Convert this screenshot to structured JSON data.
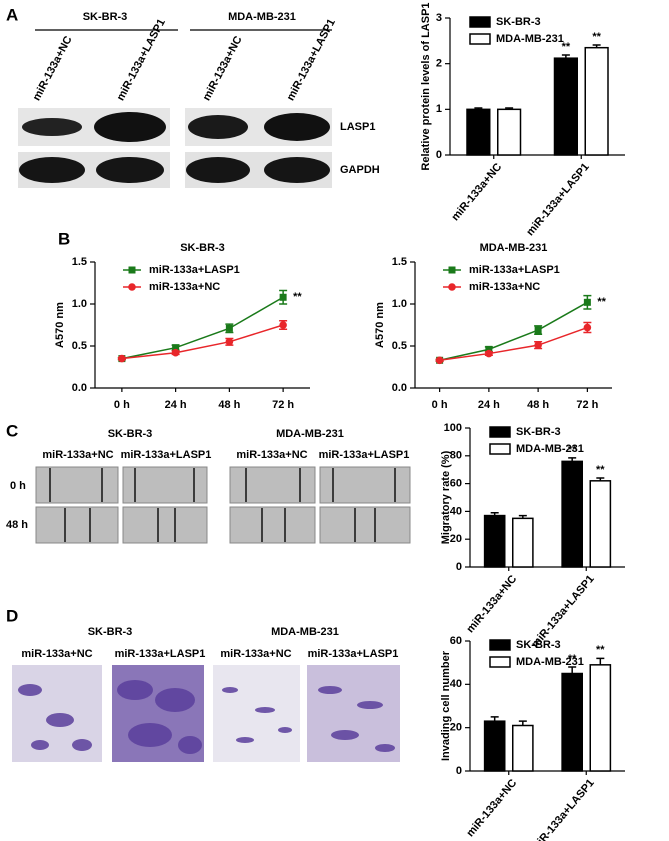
{
  "chart_data": [
    {
      "type": "bar",
      "ylabel": "Relative protein levels of LASP1",
      "categories": [
        "miR-133a+NC",
        "miR-133a+LASP1"
      ],
      "series": [
        {
          "name": "SK-BR-3",
          "color": "#000000",
          "values": [
            1.0,
            2.12
          ],
          "errors": [
            0.03,
            0.07
          ],
          "significance": [
            null,
            "**"
          ]
        },
        {
          "name": "MDA-MB-231",
          "color": "#ffffff",
          "values": [
            1.0,
            2.35
          ],
          "errors": [
            0.03,
            0.06
          ],
          "significance": [
            null,
            "**"
          ]
        }
      ],
      "ylim": [
        0,
        3
      ],
      "yticks": [
        0,
        1,
        2,
        3
      ]
    },
    {
      "type": "line",
      "title": "SK-BR-3",
      "ylabel": "A570 nm",
      "categories": [
        "0 h",
        "24 h",
        "48 h",
        "72 h"
      ],
      "series": [
        {
          "name": "miR-133a+LASP1",
          "color": "#1a7a1a",
          "marker": "square",
          "values": [
            0.35,
            0.48,
            0.71,
            1.08
          ],
          "errors": [
            0.01,
            0.03,
            0.05,
            0.08
          ]
        },
        {
          "name": "miR-133a+NC",
          "color": "#e8262a",
          "marker": "circle",
          "values": [
            0.35,
            0.42,
            0.55,
            0.75
          ],
          "errors": [
            0.01,
            0.02,
            0.04,
            0.05
          ]
        }
      ],
      "annotation": "**",
      "ylim": [
        0,
        1.5
      ],
      "yticks": [
        {
          "value": 0,
          "label": "0.0"
        },
        {
          "value": 0.5,
          "label": "0.5"
        },
        {
          "value": 1,
          "label": "1.0"
        },
        {
          "value": 1.5,
          "label": "1.5"
        }
      ]
    },
    {
      "type": "line",
      "title": "MDA-MB-231",
      "ylabel": "A570 nm",
      "categories": [
        "0 h",
        "24 h",
        "48 h",
        "72 h"
      ],
      "series": [
        {
          "name": "miR-133a+LASP1",
          "color": "#1a7a1a",
          "marker": "square",
          "values": [
            0.33,
            0.46,
            0.69,
            1.02
          ],
          "errors": [
            0.01,
            0.03,
            0.05,
            0.08
          ]
        },
        {
          "name": "miR-133a+NC",
          "color": "#e8262a",
          "marker": "circle",
          "values": [
            0.33,
            0.41,
            0.51,
            0.72
          ],
          "errors": [
            0.01,
            0.02,
            0.04,
            0.06
          ]
        }
      ],
      "annotation": "**",
      "ylim": [
        0,
        1.5
      ],
      "yticks": [
        {
          "value": 0,
          "label": "0.0"
        },
        {
          "value": 0.5,
          "label": "0.5"
        },
        {
          "value": 1,
          "label": "1.0"
        },
        {
          "value": 1.5,
          "label": "1.5"
        }
      ]
    },
    {
      "type": "bar",
      "ylabel": "Migratory rate (%)",
      "categories": [
        "miR-133a+NC",
        "miR-133a+LASP1"
      ],
      "series": [
        {
          "name": "SK-BR-3",
          "color": "#000000",
          "values": [
            37,
            76
          ],
          "errors": [
            2,
            2.5
          ],
          "significance": [
            null,
            "**"
          ]
        },
        {
          "name": "MDA-MB-231",
          "color": "#ffffff",
          "values": [
            35,
            62
          ],
          "errors": [
            2,
            2
          ],
          "significance": [
            null,
            "**"
          ]
        }
      ],
      "ylim": [
        0,
        100
      ],
      "yticks": [
        0,
        20,
        40,
        60,
        80,
        100
      ]
    },
    {
      "type": "bar",
      "ylabel": "Invading cell number",
      "categories": [
        "miR-133a+NC",
        "miR-133a+LASP1"
      ],
      "series": [
        {
          "name": "SK-BR-3",
          "color": "#000000",
          "values": [
            23,
            45
          ],
          "errors": [
            2,
            3
          ],
          "significance": [
            null,
            "**"
          ]
        },
        {
          "name": "MDA-MB-231",
          "color": "#ffffff",
          "values": [
            21,
            49
          ],
          "errors": [
            2,
            3
          ],
          "significance": [
            null,
            "**"
          ]
        }
      ],
      "ylim": [
        0,
        60
      ],
      "yticks": [
        0,
        20,
        40,
        60
      ]
    }
  ],
  "figure": {
    "panels": [
      "A",
      "B",
      "C",
      "D"
    ],
    "blot": {
      "groups": [
        "SK-BR-3",
        "MDA-MB-231"
      ],
      "lanes": [
        "miR-133a+NC",
        "miR-133a+LASP1",
        "miR-133a+NC",
        "miR-133a+LASP1"
      ],
      "bands": [
        "LASP1",
        "GAPDH"
      ]
    },
    "scratch": {
      "groups": [
        "SK-BR-3",
        "MDA-MB-231"
      ],
      "lanes": [
        "miR-133a+NC",
        "miR-133a+LASP1",
        "miR-133a+NC",
        "miR-133a+LASP1"
      ],
      "times": [
        "0 h",
        "48 h"
      ]
    },
    "invasion": {
      "groups": [
        "SK-BR-3",
        "MDA-MB-231"
      ],
      "lanes": [
        "miR-133a+NC",
        "miR-133a+LASP1",
        "miR-133a+NC",
        "miR-133a+LASP1"
      ]
    }
  }
}
